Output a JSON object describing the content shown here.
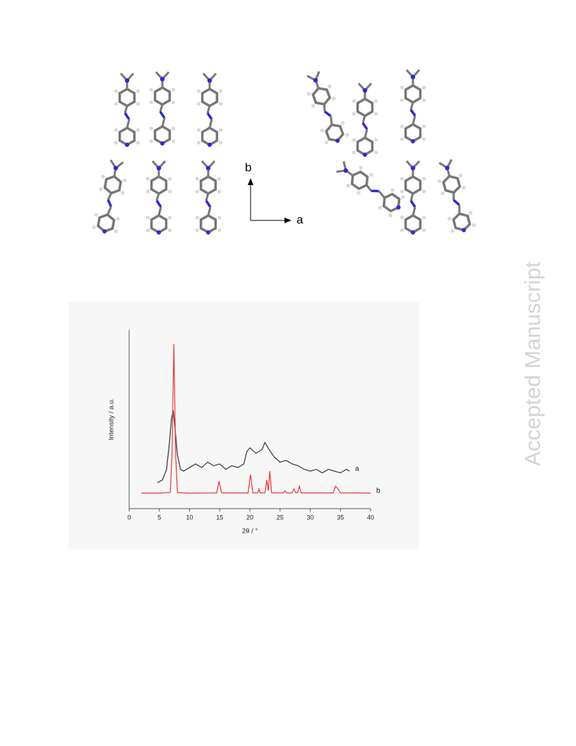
{
  "watermark": "Accepted Manuscript",
  "crystal_figure": {
    "axis_labels": [
      "b",
      "a"
    ]
  },
  "chart_data": {
    "type": "line",
    "xlabel": "2θ / °",
    "ylabel": "Intensity / a.u.",
    "xlim": [
      0,
      40
    ],
    "xticks": [
      0,
      5,
      10,
      15,
      20,
      25,
      30,
      35,
      40
    ],
    "ylim": [
      0,
      100
    ],
    "series": [
      {
        "name": "a",
        "color": "#333333",
        "x": [
          4.7,
          5.5,
          6.2,
          6.7,
          7.0,
          7.3,
          7.6,
          8.0,
          8.5,
          9,
          10,
          11,
          12,
          13,
          14,
          15,
          16,
          17,
          18,
          19,
          19.5,
          20,
          21,
          22,
          22.5,
          23,
          24,
          25,
          26,
          27,
          28,
          29,
          30,
          31,
          32,
          33,
          34,
          35,
          36,
          36.5
        ],
        "values": [
          14.6,
          16,
          22,
          38,
          50,
          55,
          45,
          30,
          22,
          21,
          23,
          25,
          23,
          26,
          24,
          25,
          22,
          24,
          23,
          25,
          32,
          34,
          31,
          33,
          37,
          34,
          29,
          26,
          27,
          25,
          24,
          22,
          21,
          22,
          20,
          22,
          21,
          20,
          22,
          21
        ]
      },
      {
        "name": "b",
        "color": "#ee3333",
        "x": [
          2,
          5,
          6.8,
          7.1,
          7.4,
          7.7,
          8,
          10,
          14.5,
          14.9,
          15.3,
          19.7,
          20.1,
          20.5,
          21.3,
          21.5,
          21.7,
          22.5,
          22.8,
          23.05,
          23.3,
          23.6,
          25.5,
          25.8,
          26.1,
          27.0,
          27.3,
          27.6,
          27.9,
          28.2,
          28.5,
          31,
          33.8,
          34.2,
          34.6,
          35,
          38,
          40
        ],
        "values": [
          8.7,
          8.7,
          9,
          30,
          92,
          30,
          9,
          8.7,
          8.8,
          15.4,
          8.8,
          8.8,
          19,
          8.8,
          8.8,
          11,
          8.8,
          8.8,
          16,
          10,
          21,
          8.8,
          8.8,
          10,
          8.8,
          8.8,
          11,
          8.8,
          9,
          12.6,
          8.8,
          8.8,
          8.8,
          12.6,
          11,
          8.8,
          8.8,
          8.7
        ]
      }
    ]
  }
}
